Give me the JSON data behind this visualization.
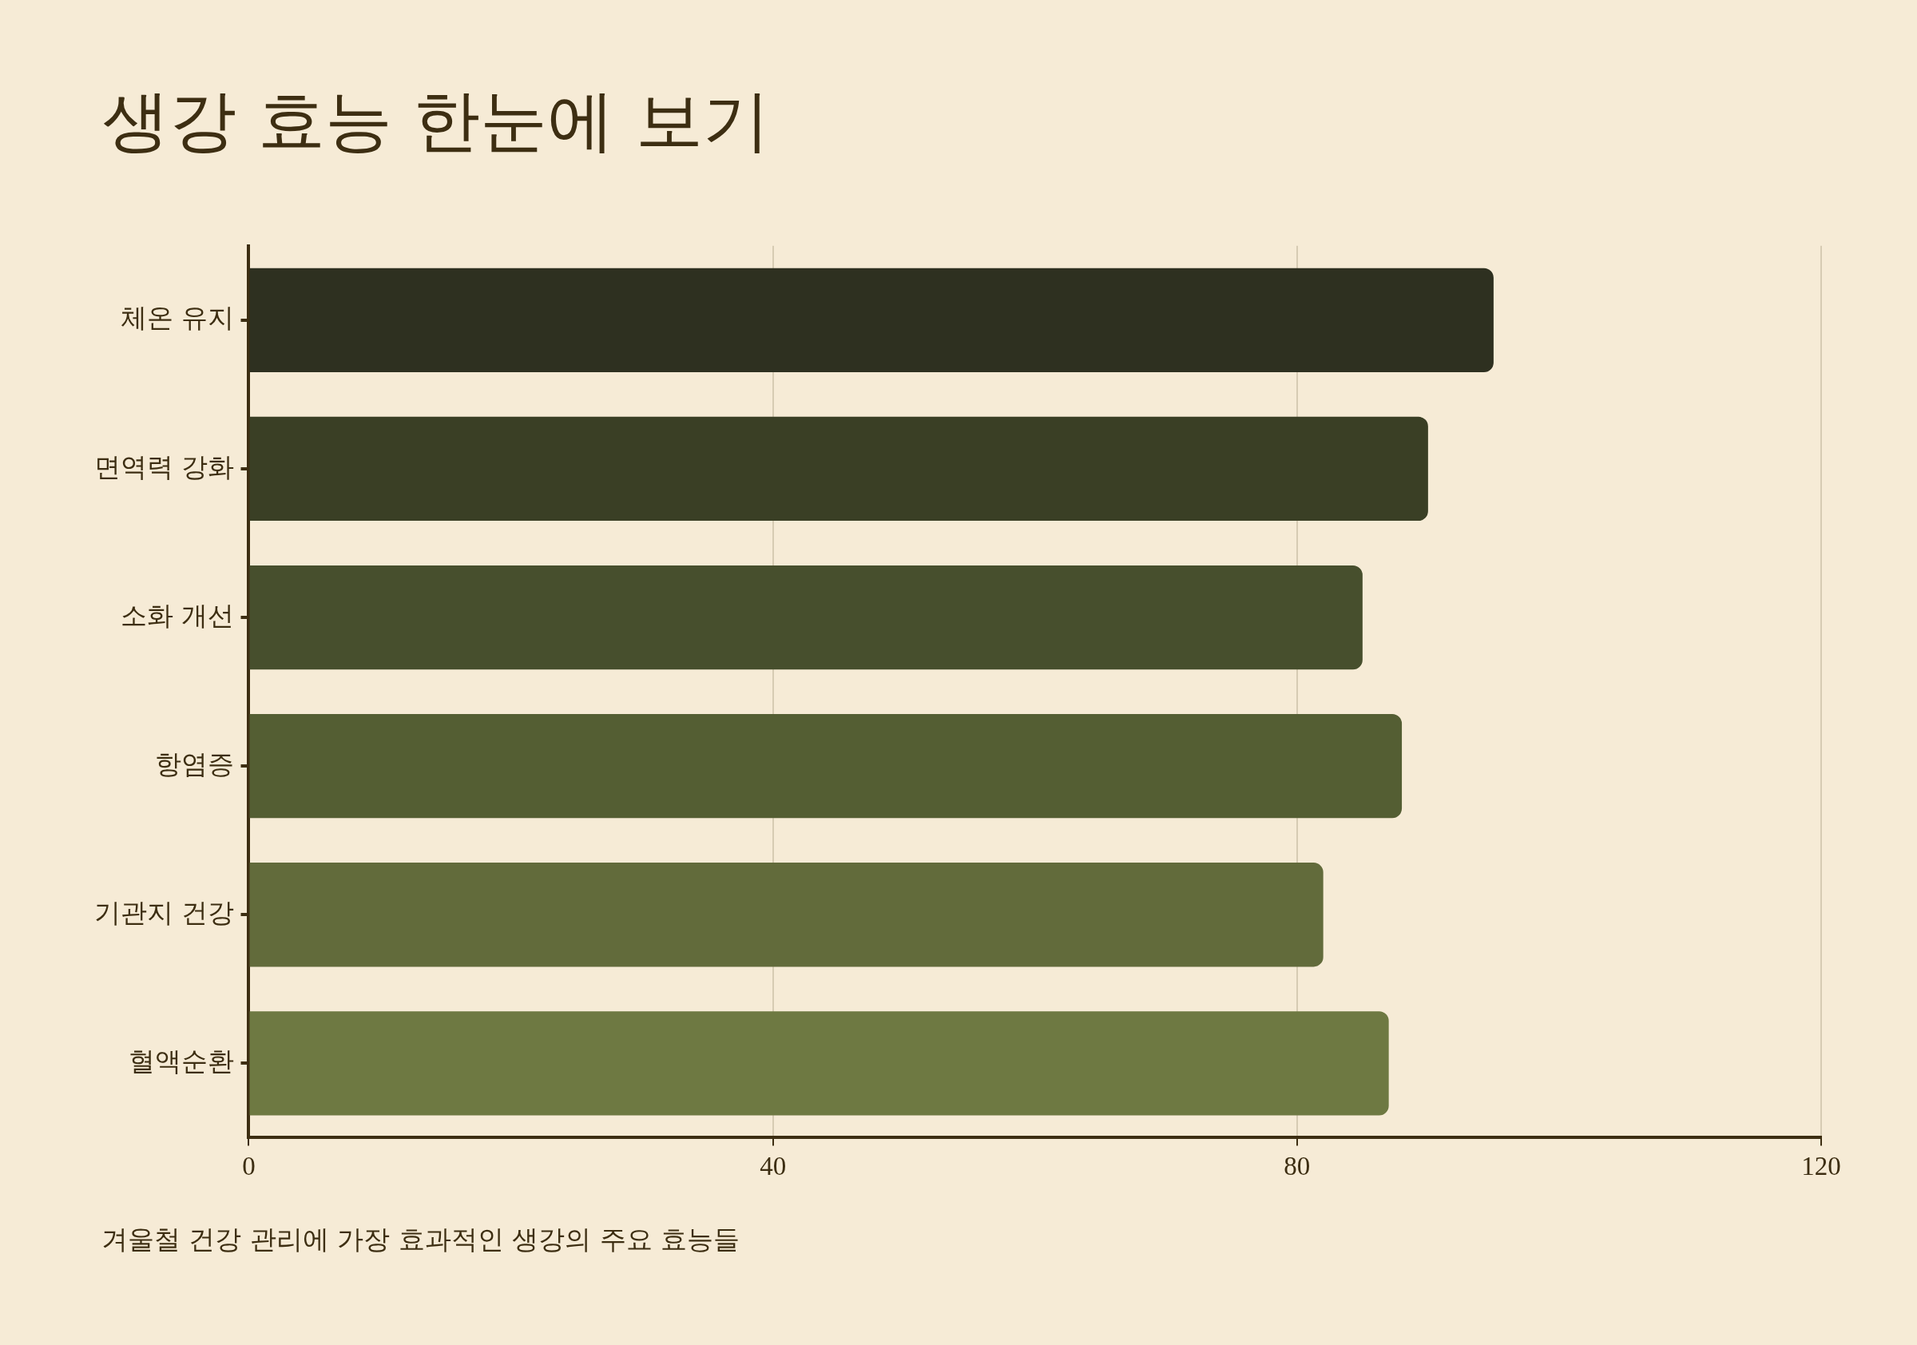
{
  "chart_data": {
    "type": "bar",
    "orientation": "horizontal",
    "title": "생강 효능 한눈에 보기",
    "categories": [
      "체온 유지",
      "면역력 강화",
      "소화 개선",
      "항염증",
      "기관지 건강",
      "혈액순환"
    ],
    "values": [
      95,
      90,
      85,
      88,
      82,
      87
    ],
    "colors": [
      "#2e3020",
      "#3a3f25",
      "#474f2d",
      "#545e33",
      "#626b3b",
      "#6e7942"
    ],
    "xlim": [
      0,
      120
    ],
    "xticks": [
      0,
      40,
      80,
      120
    ],
    "grid": "x",
    "annotations": [
      "겨울철 건강 관리에 가장 효과적인 생강의 주요 효능들"
    ]
  }
}
